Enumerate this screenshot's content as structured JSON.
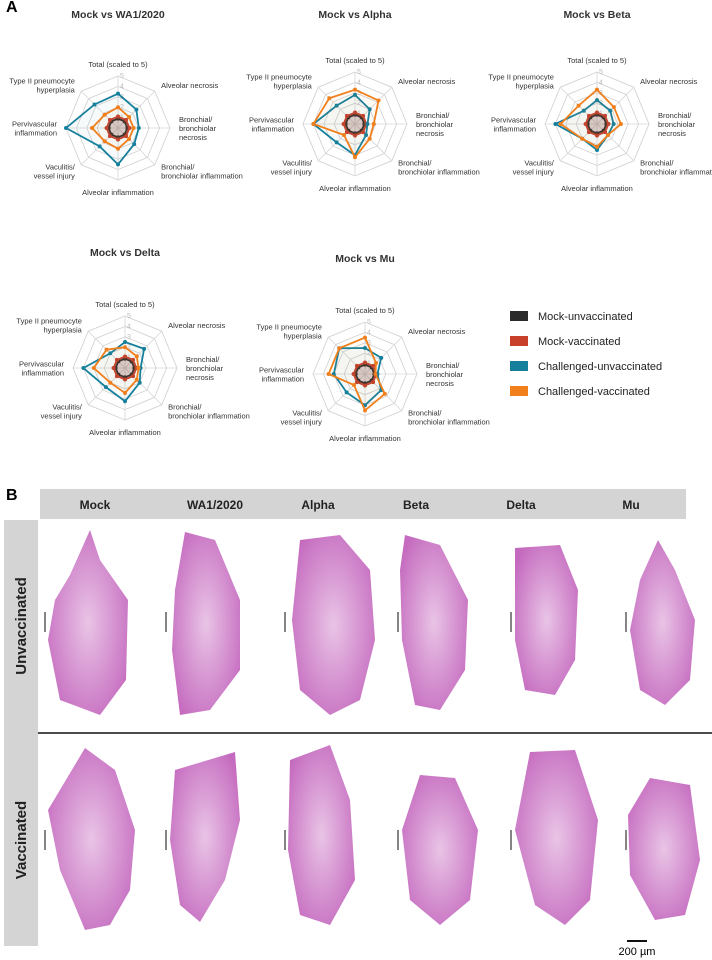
{
  "panel_labels": [
    "A",
    "B"
  ],
  "chart_data": [
    {
      "type": "radar",
      "title": "Mock vs WA1/2020",
      "axes": [
        "Total (scaled to 5)",
        "Alveolar necrosis",
        "Bronchial/\nbronchiolar\nnecrosis",
        "Bronchial/\nbronchiolar inflammation",
        "Alveolar inflammation",
        "Vaculitis/\nvessel injury",
        "Pervivascular\ninflammation",
        "Type II pneumocyte\nhyperplasia"
      ],
      "rlim": [
        0,
        5
      ],
      "rticks": [
        1,
        2,
        3,
        4,
        5
      ],
      "series": [
        {
          "name": "Mock-unvaccinated",
          "color": "#2b2b2b",
          "values": [
            0.9,
            0.9,
            0.9,
            0.9,
            0.9,
            0.9,
            0.9,
            0.9
          ]
        },
        {
          "name": "Mock-vaccinated",
          "color": "#c8402a",
          "values": [
            1.1,
            1.1,
            1.1,
            1.1,
            1.1,
            1.1,
            1.1,
            1.1
          ]
        },
        {
          "name": "Challenged-unvaccinated",
          "color": "#16809c",
          "values": [
            3.3,
            2.5,
            2.0,
            2.2,
            3.5,
            2.5,
            5,
            3.2
          ]
        },
        {
          "name": "Challenged-vaccinated",
          "color": "#f07f1c",
          "values": [
            2,
            1.5,
            1.5,
            1.5,
            2,
            1.8,
            2.5,
            1.8
          ]
        }
      ]
    },
    {
      "type": "radar",
      "title": "Mock vs Alpha",
      "axes": [
        "Total (scaled to 5)",
        "Alveolar necrosis",
        "Bronchial/\nbronchiolar\nnecrosis",
        "Bronchial/\nbronchiolar inflammation",
        "Alveolar inflammation",
        "Vaculitis/\nvessel injury",
        "Pervivascular\ninflammation",
        "Type II pneumocyte\nhyperplasia"
      ],
      "rlim": [
        0,
        5
      ],
      "rticks": [
        1,
        2,
        3,
        4,
        5
      ],
      "series": [
        {
          "color": "#2b2b2b",
          "values": [
            0.9,
            0.9,
            0.9,
            0.9,
            0.9,
            0.9,
            0.9,
            0.9
          ]
        },
        {
          "color": "#c8402a",
          "values": [
            1.1,
            1.1,
            1.1,
            1.1,
            1.1,
            1.1,
            1.1,
            1.1
          ]
        },
        {
          "color": "#16809c",
          "values": [
            2.8,
            2,
            1.2,
            1.5,
            3,
            2.5,
            4,
            2.5
          ]
        },
        {
          "color": "#f07f1c",
          "values": [
            3.3,
            3.2,
            1.8,
            2,
            3.2,
            1.5,
            4,
            3.5
          ]
        }
      ]
    },
    {
      "type": "radar",
      "title": "Mock vs Beta",
      "axes": [
        "Total (scaled to 5)",
        "Alveolar necrosis",
        "Bronchial/\nbronchiolar\nnecrosis",
        "Bronchial/\nbronchiolar inflammation",
        "Alveolar inflammation",
        "Vaculitis/\nvessel injury",
        "Pervivascular\ninflammation",
        "Type II pneumocyte\nhyperplasia"
      ],
      "rlim": [
        0,
        5
      ],
      "rticks": [
        1,
        2,
        3,
        4,
        5
      ],
      "series": [
        {
          "color": "#2b2b2b",
          "values": [
            0.9,
            0.9,
            0.9,
            0.9,
            0.9,
            0.9,
            0.9,
            0.9
          ]
        },
        {
          "color": "#c8402a",
          "values": [
            1.1,
            1.1,
            1.1,
            1.1,
            1.1,
            1.1,
            1.1,
            1.1
          ]
        },
        {
          "color": "#16809c",
          "values": [
            2.3,
            1.8,
            1.6,
            1.5,
            2.5,
            2,
            4,
            1.8
          ]
        },
        {
          "color": "#f07f1c",
          "values": [
            3.3,
            2.3,
            2.3,
            1.5,
            2.2,
            2,
            3.5,
            2.5
          ]
        }
      ]
    },
    {
      "type": "radar",
      "title": "Mock vs Delta",
      "axes": [
        "Total (scaled to 5)",
        "Alveolar necrosis",
        "Bronchial/\nbronchiolar\nnecrosis",
        "Bronchial/\nbronchiolar inflammation",
        "Alveolar inflammation",
        "Vaculitis/\nvessel injury",
        "Pervivascular\ninflammation",
        "Type II pneumocyte\nhyperplasia"
      ],
      "rlim": [
        0,
        5
      ],
      "rticks": [
        1,
        2,
        3,
        4,
        5
      ],
      "series": [
        {
          "color": "#2b2b2b",
          "values": [
            0.9,
            0.9,
            0.9,
            0.9,
            0.9,
            0.9,
            0.9,
            0.9
          ]
        },
        {
          "color": "#c8402a",
          "values": [
            1.1,
            1.1,
            1.1,
            1.1,
            1.1,
            1.1,
            1.1,
            1.1
          ]
        },
        {
          "color": "#16809c",
          "values": [
            2.5,
            2.6,
            1.5,
            2,
            3.2,
            2.6,
            4,
            2
          ]
        },
        {
          "color": "#f07f1c",
          "values": [
            2,
            1.6,
            1.3,
            1.6,
            2.4,
            2,
            3,
            2.5
          ]
        }
      ]
    },
    {
      "type": "radar",
      "title": "Mock vs Mu",
      "axes": [
        "Total (scaled to 5)",
        "Alveolar necrosis",
        "Bronchial/\nbronchiolar\nnecrosis",
        "Bronchial/\nbronchiolar inflammation",
        "Alveolar inflammation",
        "Vaculitis/\nvessel injury",
        "Pervivascular\ninflammation",
        "Type II pneumocyte\nhyperplasia"
      ],
      "rlim": [
        0,
        5
      ],
      "rticks": [
        1,
        2,
        3,
        4,
        5
      ],
      "series": [
        {
          "color": "#2b2b2b",
          "values": [
            0.9,
            0.9,
            0.9,
            0.9,
            0.9,
            0.9,
            0.9,
            0.9
          ]
        },
        {
          "color": "#c8402a",
          "values": [
            1.1,
            1.1,
            1.1,
            1.1,
            1.1,
            1.1,
            1.1,
            1.1
          ]
        },
        {
          "color": "#16809c",
          "values": [
            2.5,
            2.2,
            1.2,
            2.2,
            3,
            2.5,
            3,
            3.5
          ]
        },
        {
          "color": "#f07f1c",
          "values": [
            3.5,
            1.5,
            1,
            2.7,
            3.5,
            1.5,
            3.5,
            3.5
          ]
        }
      ]
    }
  ],
  "panel_b": {
    "columns": [
      "Mock",
      "WA1/2020",
      "Alpha",
      "Beta",
      "Delta",
      "Mu"
    ],
    "rows": [
      "Unvaccinated",
      "Vaccinated"
    ],
    "scale_bar": "200 µm"
  }
}
